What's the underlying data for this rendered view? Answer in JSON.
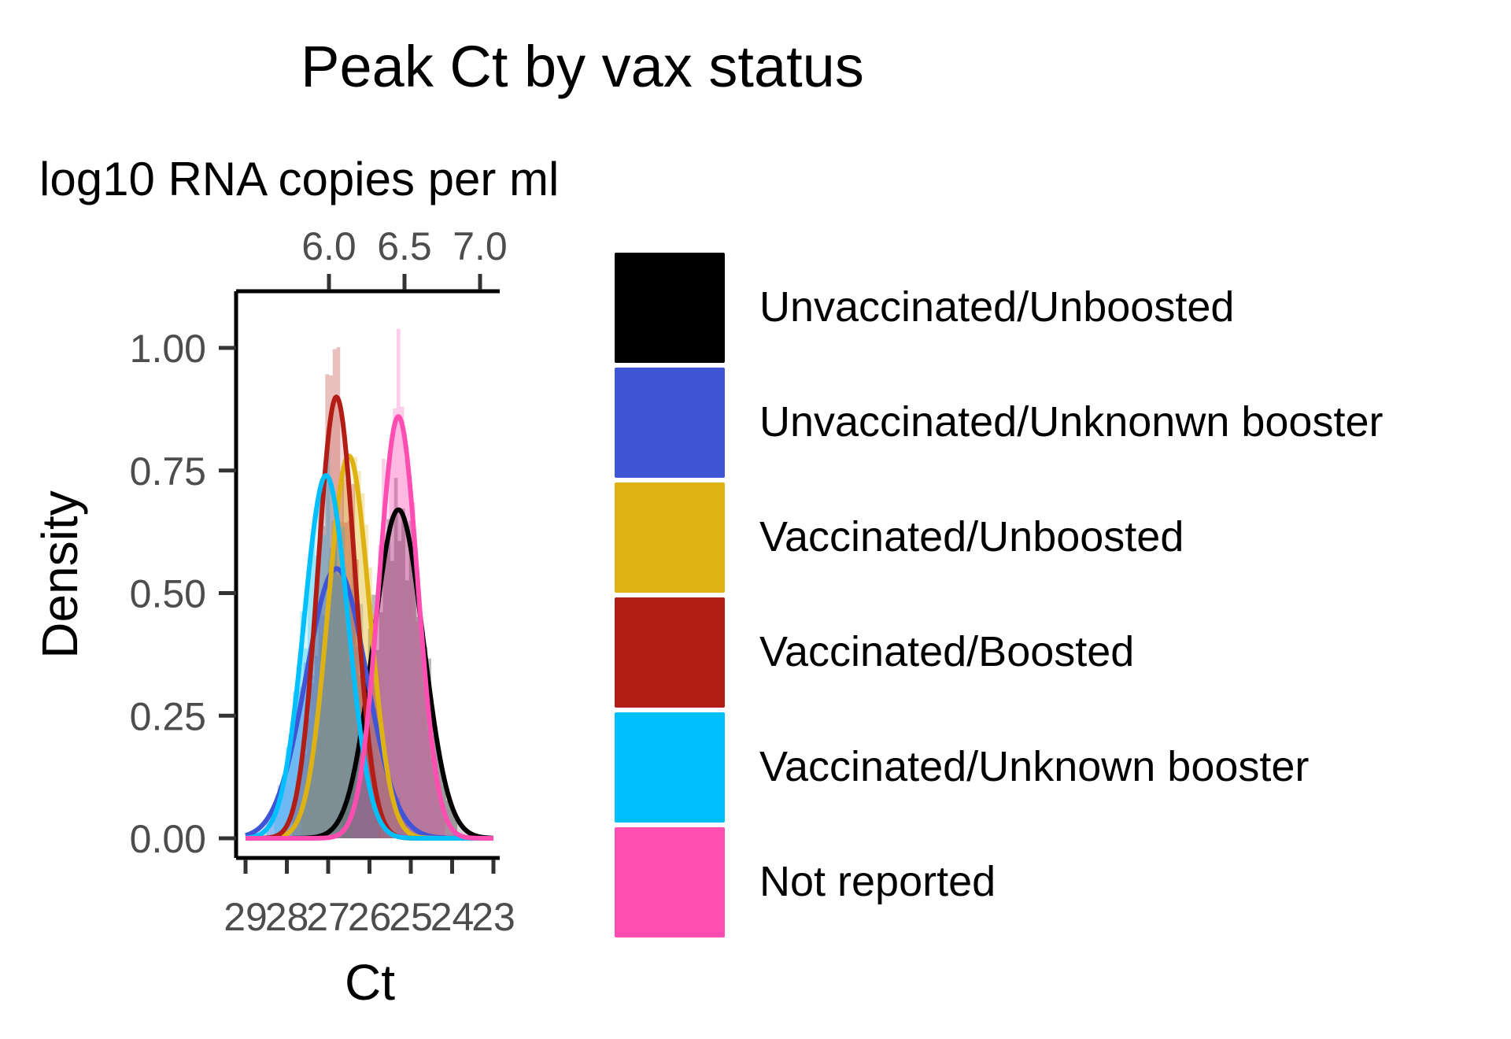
{
  "chart_data": {
    "type": "density",
    "title": "Peak Ct by vax status",
    "secondary_axis_title": "log10 RNA copies per ml",
    "xlabel": "Ct",
    "ylabel": "Density",
    "x_axis_reversed": true,
    "xlim": [
      29,
      23
    ],
    "ylim": [
      0,
      1.0
    ],
    "x_ticks": [
      29,
      28,
      27,
      26,
      25,
      24,
      23
    ],
    "y_ticks": [
      0.0,
      0.25,
      0.5,
      0.75,
      1.0
    ],
    "y_tick_labels": [
      "0.00",
      "0.25",
      "0.50",
      "0.75",
      "1.00"
    ],
    "secondary_ticks": [
      6.0,
      6.5,
      7.0
    ],
    "secondary_tick_labels": [
      "6.0",
      "6.5",
      "7.0"
    ],
    "grid": false,
    "legend_position": "right",
    "series": [
      {
        "name": "Unvaccinated/Unboosted",
        "color": "#000000",
        "mean": 25.3,
        "sd": 0.6,
        "peak": 0.67
      },
      {
        "name": "Unvaccinated/Unknonwn booster",
        "color": "#4055D6",
        "mean": 26.8,
        "sd": 0.73,
        "peak": 0.55
      },
      {
        "name": "Vaccinated/Unboosted",
        "color": "#DDB212",
        "mean": 26.5,
        "sd": 0.5,
        "peak": 0.78
      },
      {
        "name": "Vaccinated/Boosted",
        "color": "#B21E15",
        "mean": 26.8,
        "sd": 0.45,
        "peak": 0.9
      },
      {
        "name": "Vaccinated/Unknown booster",
        "color": "#00BFFF",
        "mean": 27.05,
        "sd": 0.53,
        "peak": 0.74
      },
      {
        "name": "Not reported",
        "color": "#FF4DB2",
        "mean": 25.3,
        "sd": 0.47,
        "peak": 0.86
      }
    ]
  }
}
